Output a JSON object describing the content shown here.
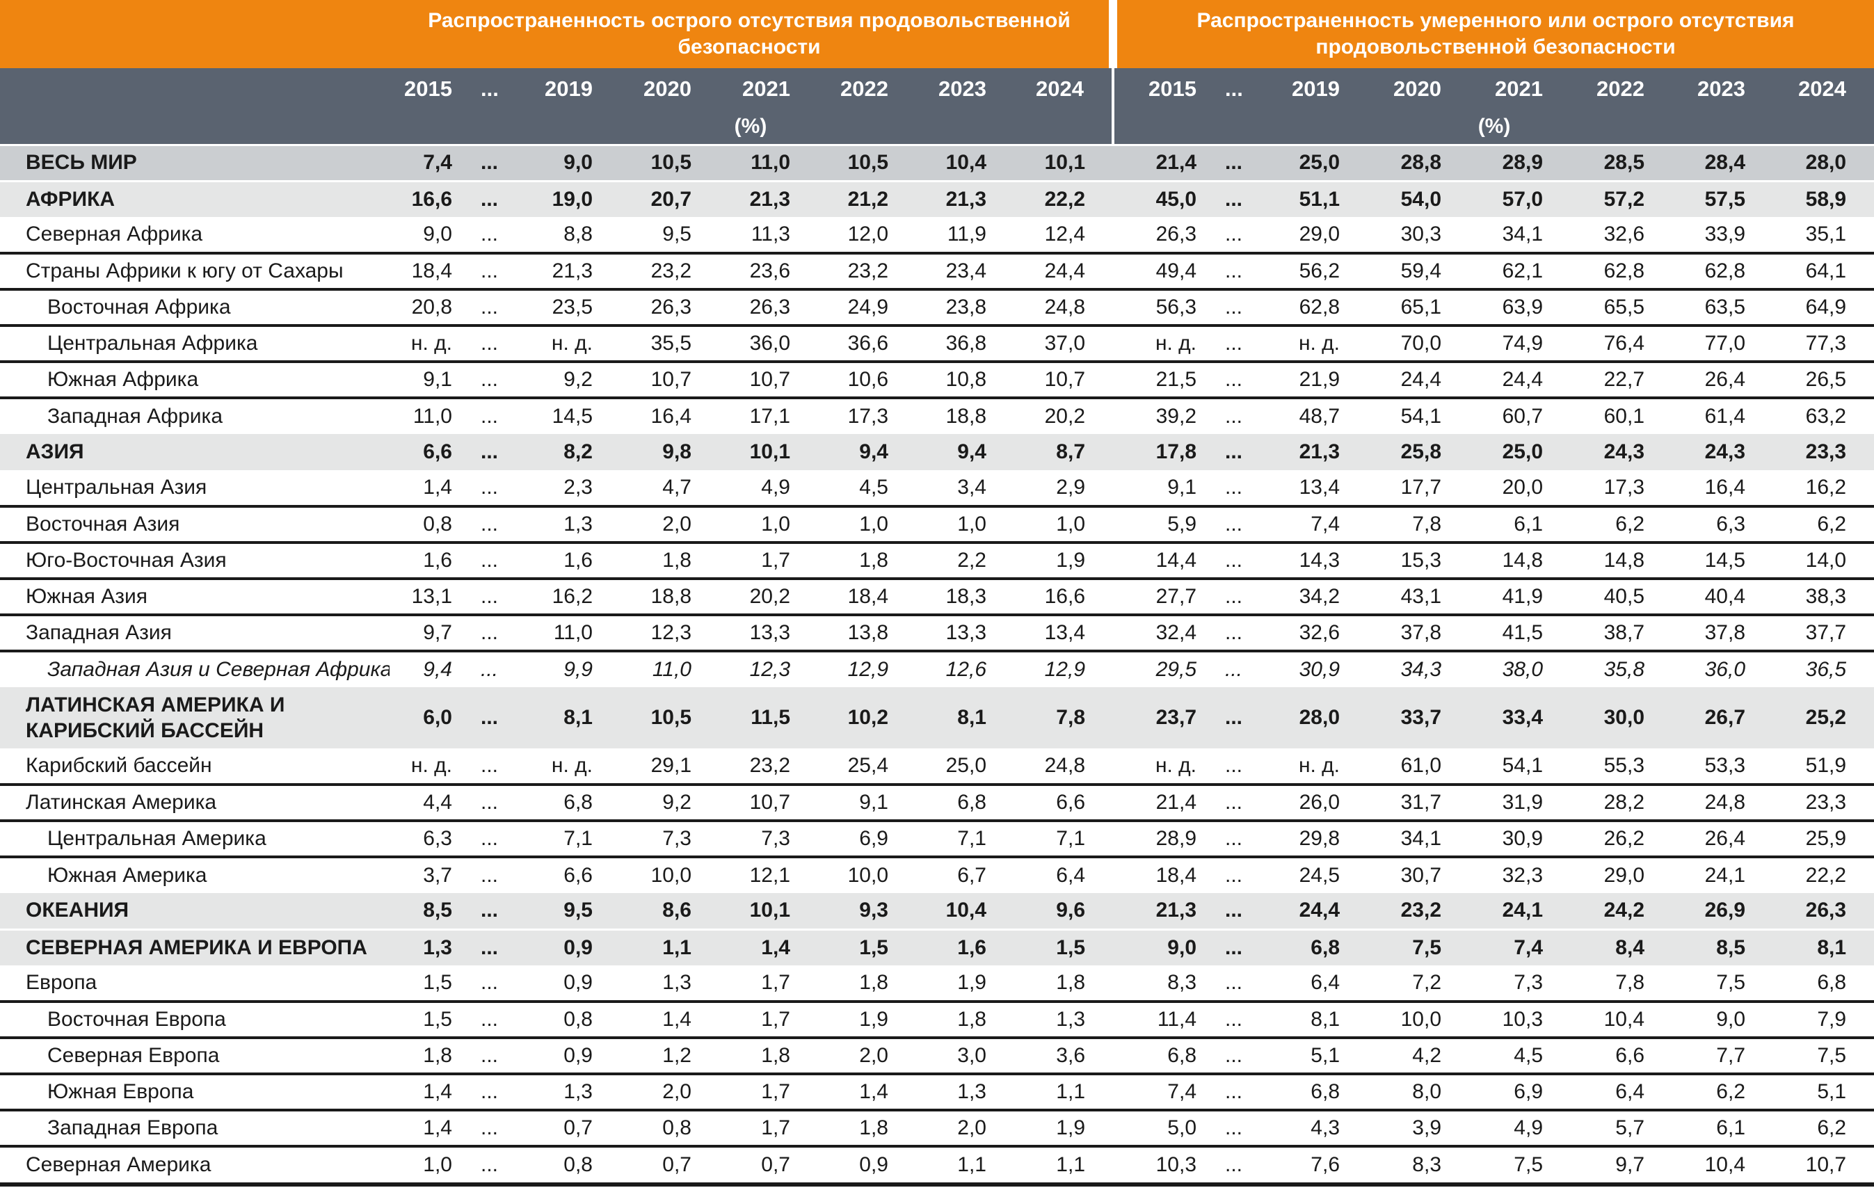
{
  "header": {
    "left_title": "Распространенность острого отсутствия продовольственной безопасности",
    "right_title": "Распространенность умеренного или острого отсутствия продовольственной безопасности",
    "unit": "(%)",
    "na_label": "н. д."
  },
  "colors": {
    "orange_header": "#EF8510",
    "slate_header": "#5A6370",
    "world_row_bg": "#CBCED1",
    "section_row_bg": "#E5E6E6",
    "separator_line": "#1A1A1A",
    "header_text": "#FFFFFF"
  },
  "chart_data": {
    "type": "table",
    "years": [
      "2015",
      "...",
      "2019",
      "2020",
      "2021",
      "2022",
      "2023",
      "2024"
    ],
    "left_series_name": "Распространенность острого отсутствия продовольственной безопасности (%)",
    "right_series_name": "Распространенность умеренного или острого отсутствия продовольственной безопасности (%)",
    "rows": [
      {
        "region": "ВЕСЬ МИР",
        "level": "world",
        "indent": false,
        "psfi": [
          "7,4",
          "...",
          "9,0",
          "10,5",
          "11,0",
          "10,5",
          "10,4",
          "10,1"
        ],
        "pmsfi": [
          "21,4",
          "...",
          "25,0",
          "28,8",
          "28,9",
          "28,5",
          "28,4",
          "28,0"
        ]
      },
      {
        "region": "АФРИКА",
        "level": "continent",
        "indent": false,
        "psfi": [
          "16,6",
          "...",
          "19,0",
          "20,7",
          "21,3",
          "21,2",
          "21,3",
          "22,2"
        ],
        "pmsfi": [
          "45,0",
          "...",
          "51,1",
          "54,0",
          "57,0",
          "57,2",
          "57,5",
          "58,9"
        ]
      },
      {
        "region": "Северная Африка",
        "level": "region",
        "indent": false,
        "psfi": [
          "9,0",
          "...",
          "8,8",
          "9,5",
          "11,3",
          "12,0",
          "11,9",
          "12,4"
        ],
        "pmsfi": [
          "26,3",
          "...",
          "29,0",
          "30,3",
          "34,1",
          "32,6",
          "33,9",
          "35,1"
        ]
      },
      {
        "region": "Страны Африки к югу от Сахары",
        "level": "region",
        "indent": false,
        "psfi": [
          "18,4",
          "...",
          "21,3",
          "23,2",
          "23,6",
          "23,2",
          "23,4",
          "24,4"
        ],
        "pmsfi": [
          "49,4",
          "...",
          "56,2",
          "59,4",
          "62,1",
          "62,8",
          "62,8",
          "64,1"
        ]
      },
      {
        "region": "Восточная Африка",
        "level": "subregion",
        "indent": true,
        "psfi": [
          "20,8",
          "...",
          "23,5",
          "26,3",
          "26,3",
          "24,9",
          "23,8",
          "24,8"
        ],
        "pmsfi": [
          "56,3",
          "...",
          "62,8",
          "65,1",
          "63,9",
          "65,5",
          "63,5",
          "64,9"
        ]
      },
      {
        "region": "Центральная Африка",
        "level": "subregion",
        "indent": true,
        "psfi": [
          "н. д.",
          "...",
          "н. д.",
          "35,5",
          "36,0",
          "36,6",
          "36,8",
          "37,0"
        ],
        "pmsfi": [
          "н. д.",
          "...",
          "н. д.",
          "70,0",
          "74,9",
          "76,4",
          "77,0",
          "77,3"
        ]
      },
      {
        "region": "Южная Африка",
        "level": "subregion",
        "indent": true,
        "psfi": [
          "9,1",
          "...",
          "9,2",
          "10,7",
          "10,7",
          "10,6",
          "10,8",
          "10,7"
        ],
        "pmsfi": [
          "21,5",
          "...",
          "21,9",
          "24,4",
          "24,4",
          "22,7",
          "26,4",
          "26,5"
        ]
      },
      {
        "region": "Западная Африка",
        "level": "subregion",
        "indent": true,
        "psfi": [
          "11,0",
          "...",
          "14,5",
          "16,4",
          "17,1",
          "17,3",
          "18,8",
          "20,2"
        ],
        "pmsfi": [
          "39,2",
          "...",
          "48,7",
          "54,1",
          "60,7",
          "60,1",
          "61,4",
          "63,2"
        ]
      },
      {
        "region": "АЗИЯ",
        "level": "continent",
        "indent": false,
        "psfi": [
          "6,6",
          "...",
          "8,2",
          "9,8",
          "10,1",
          "9,4",
          "9,4",
          "8,7"
        ],
        "pmsfi": [
          "17,8",
          "...",
          "21,3",
          "25,8",
          "25,0",
          "24,3",
          "24,3",
          "23,3"
        ]
      },
      {
        "region": "Центральная Азия",
        "level": "region",
        "indent": false,
        "psfi": [
          "1,4",
          "...",
          "2,3",
          "4,7",
          "4,9",
          "4,5",
          "3,4",
          "2,9"
        ],
        "pmsfi": [
          "9,1",
          "...",
          "13,4",
          "17,7",
          "20,0",
          "17,3",
          "16,4",
          "16,2"
        ]
      },
      {
        "region": "Восточная Азия",
        "level": "region",
        "indent": false,
        "psfi": [
          "0,8",
          "...",
          "1,3",
          "2,0",
          "1,0",
          "1,0",
          "1,0",
          "1,0"
        ],
        "pmsfi": [
          "5,9",
          "...",
          "7,4",
          "7,8",
          "6,1",
          "6,2",
          "6,3",
          "6,2"
        ]
      },
      {
        "region": "Юго-Восточная Азия",
        "level": "region",
        "indent": false,
        "psfi": [
          "1,6",
          "...",
          "1,6",
          "1,8",
          "1,7",
          "1,8",
          "2,2",
          "1,9"
        ],
        "pmsfi": [
          "14,4",
          "...",
          "14,3",
          "15,3",
          "14,8",
          "14,8",
          "14,5",
          "14,0"
        ]
      },
      {
        "region": "Южная Азия",
        "level": "region",
        "indent": false,
        "psfi": [
          "13,1",
          "...",
          "16,2",
          "18,8",
          "20,2",
          "18,4",
          "18,3",
          "16,6"
        ],
        "pmsfi": [
          "27,7",
          "...",
          "34,2",
          "43,1",
          "41,9",
          "40,5",
          "40,4",
          "38,3"
        ]
      },
      {
        "region": "Западная Азия",
        "level": "region",
        "indent": false,
        "psfi": [
          "9,7",
          "...",
          "11,0",
          "12,3",
          "13,3",
          "13,8",
          "13,3",
          "13,4"
        ],
        "pmsfi": [
          "32,4",
          "...",
          "32,6",
          "37,8",
          "41,5",
          "38,7",
          "37,8",
          "37,7"
        ]
      },
      {
        "region": "Западная Азия и Северная Африка",
        "level": "aggregate",
        "indent": true,
        "italic": true,
        "psfi": [
          "9,4",
          "...",
          "9,9",
          "11,0",
          "12,3",
          "12,9",
          "12,6",
          "12,9"
        ],
        "pmsfi": [
          "29,5",
          "...",
          "30,9",
          "34,3",
          "38,0",
          "35,8",
          "36,0",
          "36,5"
        ]
      },
      {
        "region": "ЛАТИНСКАЯ АМЕРИКА И КАРИБСКИЙ БАССЕЙН",
        "level": "continent",
        "indent": false,
        "two_line": true,
        "psfi": [
          "6,0",
          "...",
          "8,1",
          "10,5",
          "11,5",
          "10,2",
          "8,1",
          "7,8"
        ],
        "pmsfi": [
          "23,7",
          "...",
          "28,0",
          "33,7",
          "33,4",
          "30,0",
          "26,7",
          "25,2"
        ]
      },
      {
        "region": "Карибский бассейн",
        "level": "region",
        "indent": false,
        "psfi": [
          "н. д.",
          "...",
          "н. д.",
          "29,1",
          "23,2",
          "25,4",
          "25,0",
          "24,8"
        ],
        "pmsfi": [
          "н. д.",
          "...",
          "н. д.",
          "61,0",
          "54,1",
          "55,3",
          "53,3",
          "51,9"
        ]
      },
      {
        "region": "Латинская Америка",
        "level": "region",
        "indent": false,
        "psfi": [
          "4,4",
          "...",
          "6,8",
          "9,2",
          "10,7",
          "9,1",
          "6,8",
          "6,6"
        ],
        "pmsfi": [
          "21,4",
          "...",
          "26,0",
          "31,7",
          "31,9",
          "28,2",
          "24,8",
          "23,3"
        ]
      },
      {
        "region": "Центральная Америка",
        "level": "subregion",
        "indent": true,
        "psfi": [
          "6,3",
          "...",
          "7,1",
          "7,3",
          "7,3",
          "6,9",
          "7,1",
          "7,1"
        ],
        "pmsfi": [
          "28,9",
          "...",
          "29,8",
          "34,1",
          "30,9",
          "26,2",
          "26,4",
          "25,9"
        ]
      },
      {
        "region": "Южная Америка",
        "level": "subregion",
        "indent": true,
        "psfi": [
          "3,7",
          "...",
          "6,6",
          "10,0",
          "12,1",
          "10,0",
          "6,7",
          "6,4"
        ],
        "pmsfi": [
          "18,4",
          "...",
          "24,5",
          "30,7",
          "32,3",
          "29,0",
          "24,1",
          "22,2"
        ]
      },
      {
        "region": "ОКЕАНИЯ",
        "level": "continent",
        "indent": false,
        "psfi": [
          "8,5",
          "...",
          "9,5",
          "8,6",
          "10,1",
          "9,3",
          "10,4",
          "9,6"
        ],
        "pmsfi": [
          "21,3",
          "...",
          "24,4",
          "23,2",
          "24,1",
          "24,2",
          "26,9",
          "26,3"
        ]
      },
      {
        "region": "СЕВЕРНАЯ АМЕРИКА И ЕВРОПА",
        "level": "continent",
        "indent": false,
        "psfi": [
          "1,3",
          "...",
          "0,9",
          "1,1",
          "1,4",
          "1,5",
          "1,6",
          "1,5"
        ],
        "pmsfi": [
          "9,0",
          "...",
          "6,8",
          "7,5",
          "7,4",
          "8,4",
          "8,5",
          "8,1"
        ]
      },
      {
        "region": "Европа",
        "level": "region",
        "indent": false,
        "psfi": [
          "1,5",
          "...",
          "0,9",
          "1,3",
          "1,7",
          "1,8",
          "1,9",
          "1,8"
        ],
        "pmsfi": [
          "8,3",
          "...",
          "6,4",
          "7,2",
          "7,3",
          "7,8",
          "7,5",
          "6,8"
        ]
      },
      {
        "region": "Восточная Европа",
        "level": "subregion",
        "indent": true,
        "psfi": [
          "1,5",
          "...",
          "0,8",
          "1,4",
          "1,7",
          "1,9",
          "1,8",
          "1,3"
        ],
        "pmsfi": [
          "11,4",
          "...",
          "8,1",
          "10,0",
          "10,3",
          "10,4",
          "9,0",
          "7,9"
        ]
      },
      {
        "region": "Северная Европа",
        "level": "subregion",
        "indent": true,
        "psfi": [
          "1,8",
          "...",
          "0,9",
          "1,2",
          "1,8",
          "2,0",
          "3,0",
          "3,6"
        ],
        "pmsfi": [
          "6,8",
          "...",
          "5,1",
          "4,2",
          "4,5",
          "6,6",
          "7,7",
          "7,5"
        ]
      },
      {
        "region": "Южная Европа",
        "level": "subregion",
        "indent": true,
        "psfi": [
          "1,4",
          "...",
          "1,3",
          "2,0",
          "1,7",
          "1,4",
          "1,3",
          "1,1"
        ],
        "pmsfi": [
          "7,4",
          "...",
          "6,8",
          "8,0",
          "6,9",
          "6,4",
          "6,2",
          "5,1"
        ]
      },
      {
        "region": "Западная Европа",
        "level": "subregion",
        "indent": true,
        "psfi": [
          "1,4",
          "...",
          "0,7",
          "0,8",
          "1,7",
          "1,8",
          "2,0",
          "1,9"
        ],
        "pmsfi": [
          "5,0",
          "...",
          "4,3",
          "3,9",
          "4,9",
          "5,7",
          "6,1",
          "6,2"
        ]
      },
      {
        "region": "Северная Америка",
        "level": "region",
        "indent": false,
        "psfi": [
          "1,0",
          "...",
          "0,8",
          "0,7",
          "0,7",
          "0,9",
          "1,1",
          "1,1"
        ],
        "pmsfi": [
          "10,3",
          "...",
          "7,6",
          "8,3",
          "7,5",
          "9,7",
          "10,4",
          "10,7"
        ]
      }
    ]
  }
}
